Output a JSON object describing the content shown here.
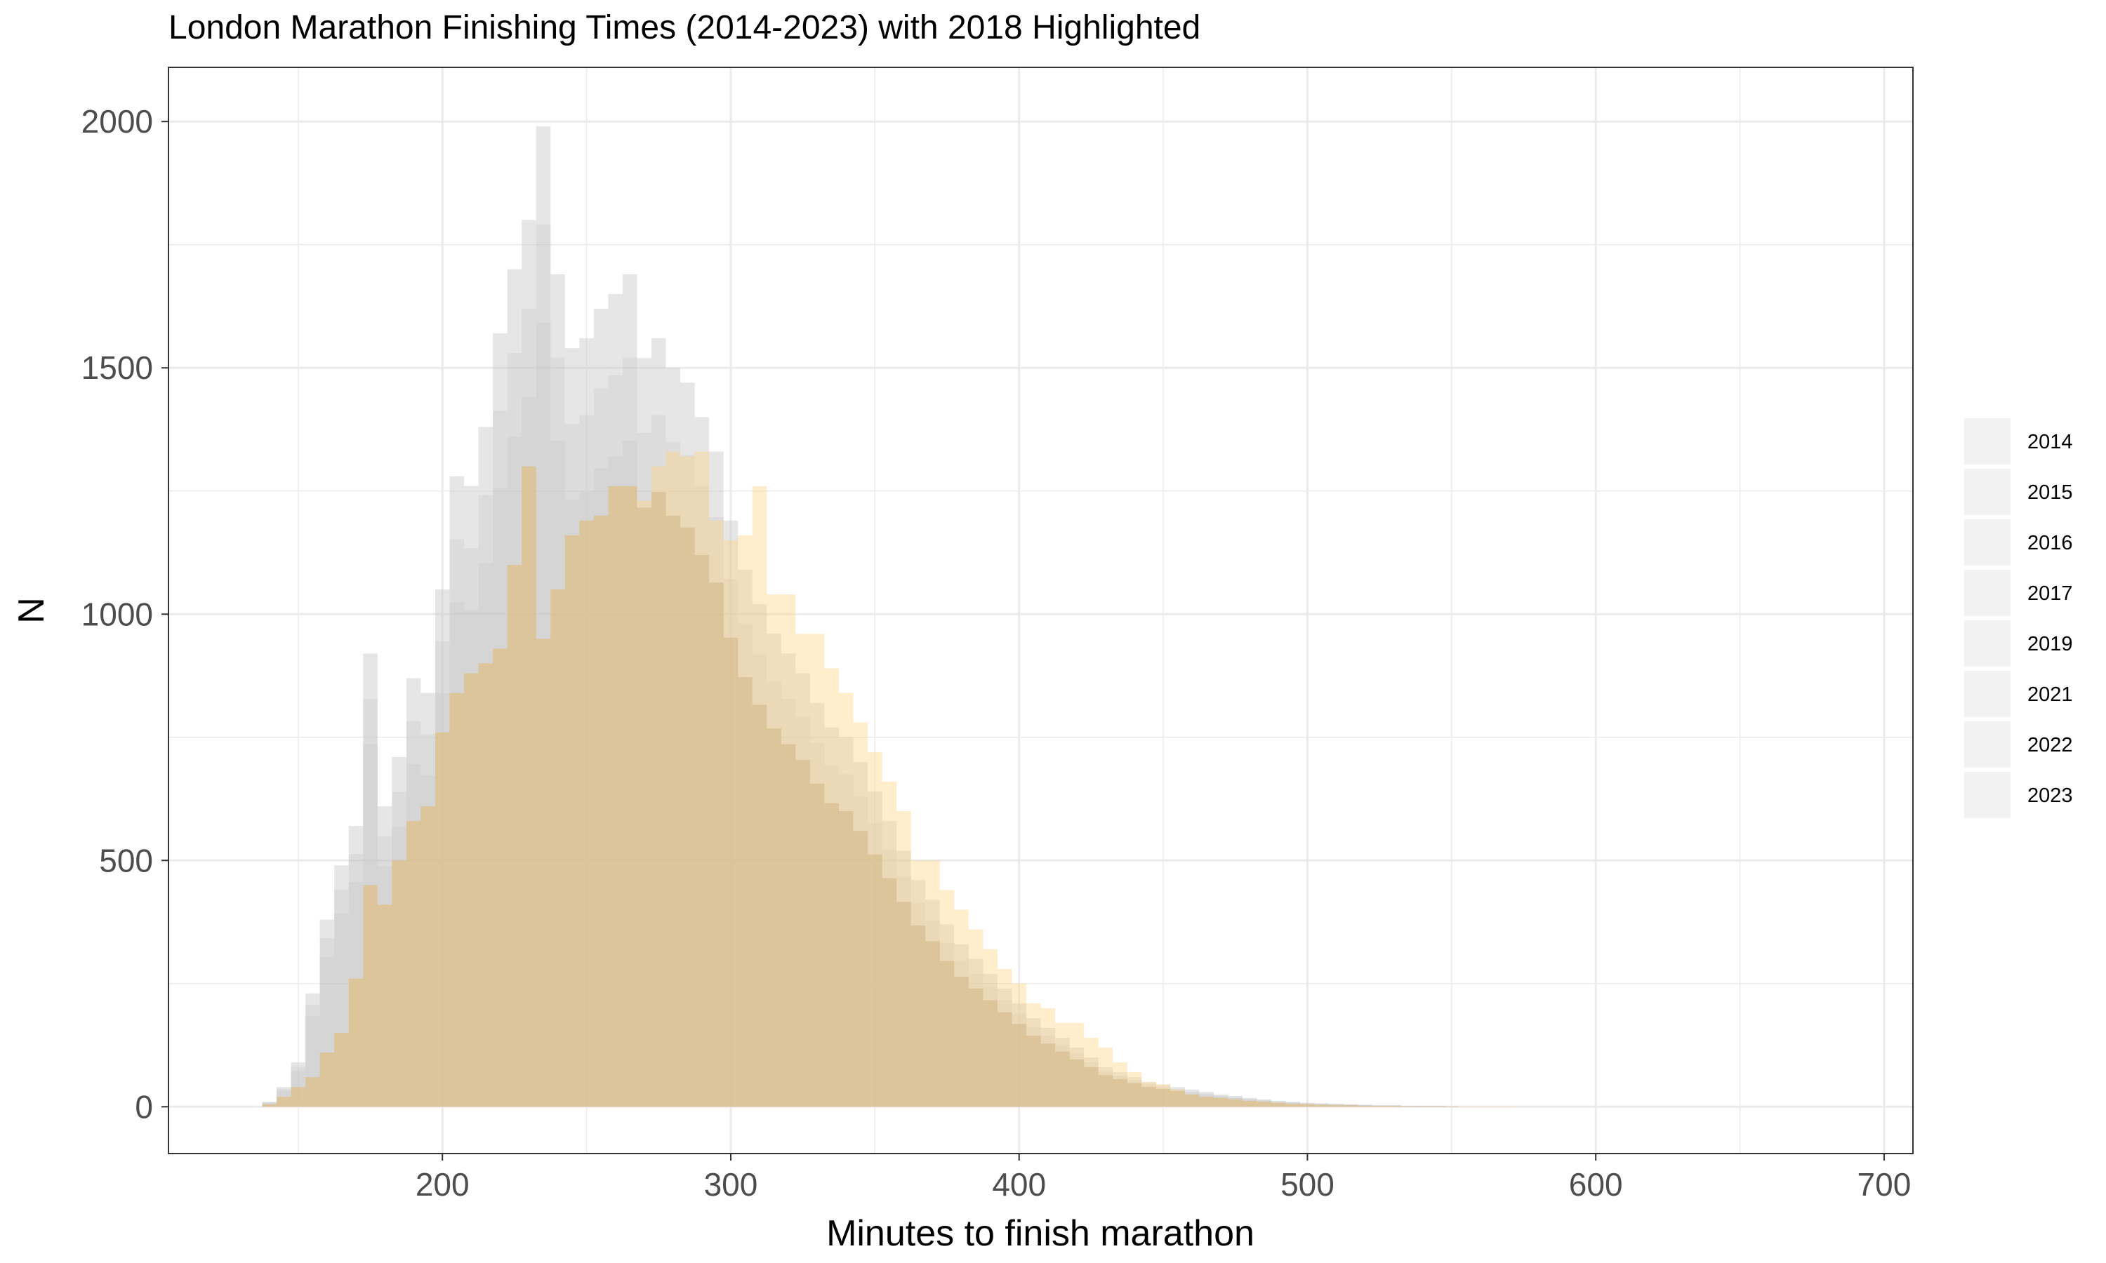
{
  "chart_data": {
    "type": "histogram",
    "title": "London Marathon Finishing Times (2014-2023) with 2018 Highlighted",
    "xlabel": "Minutes to finish marathon",
    "ylabel": "N",
    "xlim": [
      105,
      710
    ],
    "ylim": [
      -95,
      2110
    ],
    "x_ticks": [
      200,
      300,
      400,
      500,
      600,
      700
    ],
    "y_ticks": [
      0,
      500,
      1000,
      1500,
      2000
    ],
    "bin_width": 5,
    "grid": true,
    "legend_position": "right",
    "legend": [
      "2014",
      "2015",
      "2016",
      "2017",
      "2019",
      "2021",
      "2022",
      "2023"
    ],
    "colors": {
      "background_years": "#c8c8c8",
      "highlight_2018": "#ffd27f",
      "grid": "#ebebeb",
      "panel_border": "#333333"
    },
    "series": [
      {
        "name": "2018 (highlighted)",
        "highlight": true,
        "x": [
          140,
          145,
          150,
          155,
          160,
          165,
          170,
          175,
          180,
          185,
          190,
          195,
          200,
          205,
          210,
          215,
          220,
          225,
          230,
          235,
          240,
          245,
          250,
          255,
          260,
          265,
          270,
          275,
          280,
          285,
          290,
          295,
          300,
          305,
          310,
          315,
          320,
          325,
          330,
          335,
          340,
          345,
          350,
          355,
          360,
          365,
          370,
          375,
          380,
          385,
          390,
          395,
          400,
          405,
          410,
          415,
          420,
          425,
          430,
          435,
          440,
          445,
          450,
          455,
          460,
          465,
          470,
          475,
          480,
          485,
          490,
          495,
          500,
          505,
          510,
          515,
          520,
          525,
          530,
          535,
          540,
          545,
          550,
          555,
          560,
          565,
          570
        ],
        "values": [
          5,
          20,
          40,
          60,
          110,
          150,
          260,
          450,
          410,
          500,
          580,
          610,
          760,
          840,
          880,
          900,
          930,
          1100,
          1300,
          950,
          1050,
          1160,
          1190,
          1200,
          1260,
          1260,
          1230,
          1300,
          1330,
          1320,
          1330,
          1190,
          1150,
          1160,
          1260,
          1040,
          1040,
          960,
          960,
          890,
          840,
          780,
          720,
          660,
          600,
          500,
          500,
          440,
          400,
          360,
          320,
          280,
          250,
          210,
          200,
          170,
          170,
          140,
          120,
          90,
          70,
          50,
          45,
          35,
          25,
          20,
          18,
          15,
          12,
          10,
          8,
          6,
          5,
          4,
          3,
          3,
          2,
          2,
          2,
          1,
          1,
          1,
          1,
          1,
          1,
          1,
          1
        ]
      },
      {
        "name": "Envelope (max across other years)",
        "x": [
          140,
          145,
          150,
          155,
          160,
          165,
          170,
          175,
          180,
          185,
          190,
          195,
          200,
          205,
          210,
          215,
          220,
          225,
          230,
          235,
          240,
          245,
          250,
          255,
          260,
          265,
          270,
          275,
          280,
          285,
          290,
          295,
          300,
          305,
          310,
          315,
          320,
          325,
          330,
          335,
          340,
          345,
          350,
          355,
          360,
          365,
          370,
          375,
          380,
          385,
          390,
          395,
          400,
          405,
          410,
          415,
          420,
          425,
          430,
          435,
          440,
          445,
          450,
          455,
          460,
          465,
          470,
          475,
          480,
          485,
          490,
          495,
          500,
          505,
          510,
          515,
          520,
          525,
          530,
          535,
          540,
          545,
          550
        ],
        "values": [
          10,
          40,
          90,
          230,
          380,
          490,
          570,
          920,
          610,
          710,
          870,
          840,
          1050,
          1280,
          1260,
          1380,
          1570,
          1700,
          1800,
          1990,
          1690,
          1540,
          1560,
          1620,
          1650,
          1690,
          1520,
          1560,
          1500,
          1470,
          1400,
          1330,
          1190,
          1090,
          1020,
          960,
          920,
          880,
          820,
          770,
          750,
          700,
          640,
          580,
          520,
          460,
          420,
          370,
          330,
          300,
          270,
          240,
          210,
          180,
          160,
          140,
          120,
          100,
          80,
          70,
          60,
          50,
          45,
          40,
          35,
          30,
          25,
          22,
          18,
          15,
          12,
          10,
          8,
          7,
          6,
          5,
          4,
          3,
          3,
          2,
          2,
          2,
          1
        ]
      }
    ]
  }
}
